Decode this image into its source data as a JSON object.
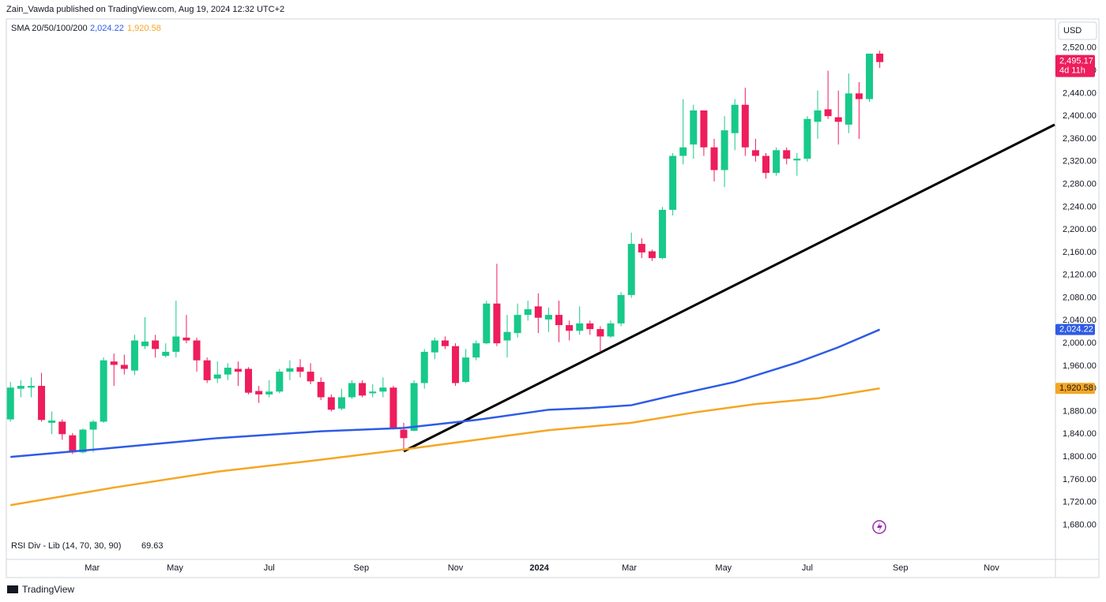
{
  "header": {
    "text": "Zain_Vawda published on TradingView.com, Aug 19, 2024 12:32 UTC+2"
  },
  "footer": {
    "brand": "TradingView"
  },
  "chart_data": {
    "type": "candlestick",
    "currency": "USD",
    "up_color": "#17c98a",
    "down_color": "#ee1d5c",
    "grid": false,
    "ylim": [
      1632,
      2535
    ],
    "yticks": [
      {
        "value": 1680,
        "label": "1,680.00"
      },
      {
        "value": 1720,
        "label": "1,720.00"
      },
      {
        "value": 1760,
        "label": "1,760.00"
      },
      {
        "value": 1800,
        "label": "1,800.00"
      },
      {
        "value": 1840,
        "label": "1,840.00"
      },
      {
        "value": 1880,
        "label": "1,880.00"
      },
      {
        "value": 1920,
        "label": "1,920.00"
      },
      {
        "value": 1960,
        "label": "1,960.00"
      },
      {
        "value": 2000,
        "label": "2,000.00"
      },
      {
        "value": 2040,
        "label": "2,040.00"
      },
      {
        "value": 2080,
        "label": "2,080.00"
      },
      {
        "value": 2120,
        "label": "2,120.00"
      },
      {
        "value": 2160,
        "label": "2,160.00"
      },
      {
        "value": 2200,
        "label": "2,200.00"
      },
      {
        "value": 2240,
        "label": "2,240.00"
      },
      {
        "value": 2280,
        "label": "2,280.00"
      },
      {
        "value": 2320,
        "label": "2,320.00"
      },
      {
        "value": 2360,
        "label": "2,360.00"
      },
      {
        "value": 2400,
        "label": "2,400.00"
      },
      {
        "value": 2440,
        "label": "2,440.00"
      },
      {
        "value": 2480,
        "label": "2,480.00"
      },
      {
        "value": 2520,
        "label": "2,520.00"
      }
    ],
    "xlim": [
      -0.4,
      100.9
    ],
    "xticks": [
      {
        "value": 7.9,
        "label": "Mar"
      },
      {
        "value": 15.9,
        "label": "May"
      },
      {
        "value": 25,
        "label": "Jul"
      },
      {
        "value": 33.9,
        "label": "Sep"
      },
      {
        "value": 43,
        "label": "Nov"
      },
      {
        "value": 51.1,
        "label": "2024"
      },
      {
        "value": 59.8,
        "label": "Mar"
      },
      {
        "value": 68.9,
        "label": "May"
      },
      {
        "value": 77,
        "label": "Jul"
      },
      {
        "value": 86,
        "label": "Sep"
      },
      {
        "value": 94.8,
        "label": "Nov"
      }
    ],
    "ohlc": [
      [
        1866,
        1932,
        1862,
        1922
      ],
      [
        1920,
        1935,
        1905,
        1925
      ],
      [
        1922,
        1940,
        1905,
        1925
      ],
      [
        1925,
        1948,
        1862,
        1865
      ],
      [
        1860,
        1880,
        1840,
        1864
      ],
      [
        1862,
        1866,
        1830,
        1840
      ],
      [
        1838,
        1842,
        1805,
        1808
      ],
      [
        1808,
        1850,
        1806,
        1848
      ],
      [
        1848,
        1865,
        1808,
        1862
      ],
      [
        1862,
        1975,
        1860,
        1970
      ],
      [
        1968,
        1982,
        1925,
        1962
      ],
      [
        1962,
        1980,
        1945,
        1955
      ],
      [
        1952,
        2015,
        1944,
        2005
      ],
      [
        1995,
        2046,
        1990,
        2003
      ],
      [
        2005,
        2015,
        1975,
        1990
      ],
      [
        1978,
        2000,
        1975,
        1985
      ],
      [
        1985,
        2075,
        1975,
        2012
      ],
      [
        2010,
        2050,
        2000,
        2005
      ],
      [
        2005,
        2010,
        1950,
        1970
      ],
      [
        1970,
        1975,
        1930,
        1935
      ],
      [
        1938,
        1968,
        1930,
        1945
      ],
      [
        1945,
        1965,
        1935,
        1957
      ],
      [
        1955,
        1968,
        1925,
        1950
      ],
      [
        1955,
        1958,
        1910,
        1913
      ],
      [
        1916,
        1925,
        1895,
        1910
      ],
      [
        1910,
        1935,
        1905,
        1915
      ],
      [
        1915,
        1955,
        1912,
        1950
      ],
      [
        1950,
        1970,
        1935,
        1956
      ],
      [
        1958,
        1972,
        1940,
        1950
      ],
      [
        1950,
        1965,
        1928,
        1933
      ],
      [
        1932,
        1940,
        1900,
        1905
      ],
      [
        1905,
        1910,
        1880,
        1883
      ],
      [
        1885,
        1920,
        1882,
        1905
      ],
      [
        1905,
        1935,
        1902,
        1930
      ],
      [
        1930,
        1935,
        1905,
        1908
      ],
      [
        1912,
        1928,
        1905,
        1915
      ],
      [
        1915,
        1940,
        1905,
        1922
      ],
      [
        1922,
        1925,
        1848,
        1850
      ],
      [
        1848,
        1860,
        1810,
        1833
      ],
      [
        1846,
        1935,
        1845,
        1930
      ],
      [
        1930,
        1990,
        1920,
        1985
      ],
      [
        1984,
        2010,
        1972,
        2005
      ],
      [
        2005,
        2012,
        1990,
        1995
      ],
      [
        1995,
        2000,
        1925,
        1930
      ],
      [
        1932,
        1990,
        1930,
        1975
      ],
      [
        1975,
        2005,
        1970,
        2000
      ],
      [
        2000,
        2075,
        1998,
        2070
      ],
      [
        2070,
        2140,
        1995,
        2000
      ],
      [
        2005,
        2050,
        1975,
        2020
      ],
      [
        2018,
        2070,
        2010,
        2050
      ],
      [
        2050,
        2075,
        2040,
        2060
      ],
      [
        2065,
        2088,
        2018,
        2045
      ],
      [
        2042,
        2063,
        2020,
        2050
      ],
      [
        2050,
        2075,
        2002,
        2032
      ],
      [
        2032,
        2040,
        2005,
        2022
      ],
      [
        2022,
        2065,
        2015,
        2035
      ],
      [
        2035,
        2040,
        2015,
        2025
      ],
      [
        2025,
        2030,
        1985,
        2012
      ],
      [
        2012,
        2040,
        2010,
        2035
      ],
      [
        2035,
        2090,
        2030,
        2085
      ],
      [
        2085,
        2195,
        2080,
        2175
      ],
      [
        2175,
        2185,
        2150,
        2160
      ],
      [
        2162,
        2165,
        2145,
        2150
      ],
      [
        2150,
        2240,
        2148,
        2235
      ],
      [
        2235,
        2335,
        2225,
        2330
      ],
      [
        2330,
        2430,
        2315,
        2345
      ],
      [
        2350,
        2420,
        2325,
        2410
      ],
      [
        2410,
        2410,
        2330,
        2345
      ],
      [
        2345,
        2360,
        2285,
        2305
      ],
      [
        2305,
        2400,
        2275,
        2375
      ],
      [
        2370,
        2430,
        2340,
        2420
      ],
      [
        2420,
        2450,
        2330,
        2345
      ],
      [
        2340,
        2360,
        2320,
        2330
      ],
      [
        2330,
        2335,
        2290,
        2300
      ],
      [
        2300,
        2345,
        2295,
        2340
      ],
      [
        2340,
        2345,
        2315,
        2325
      ],
      [
        2322,
        2335,
        2295,
        2325
      ],
      [
        2325,
        2400,
        2320,
        2395
      ],
      [
        2390,
        2445,
        2360,
        2410
      ],
      [
        2412,
        2480,
        2395,
        2400
      ],
      [
        2398,
        2445,
        2350,
        2390
      ],
      [
        2385,
        2475,
        2370,
        2440
      ],
      [
        2440,
        2460,
        2360,
        2430
      ],
      [
        2430,
        2510,
        2425,
        2510
      ],
      [
        2510,
        2515,
        2485,
        2495.17
      ]
    ],
    "last_price_label": "2,495.17",
    "countdown": "4d 11h",
    "indicator": {
      "name": "SMA 20/50/100/200",
      "series": [
        {
          "color": "#2e5be6",
          "x": [
            0,
            10,
            20,
            30,
            38,
            45,
            52,
            56,
            60,
            64,
            70,
            76,
            80,
            84
          ],
          "values": [
            1800,
            1816,
            1833,
            1845,
            1851,
            1865,
            1883,
            1886,
            1891,
            1908,
            1932,
            1966,
            1993,
            2024.22
          ],
          "last_value_label": "2,024.22"
        },
        {
          "color": "#f5a623",
          "x": [
            0,
            10,
            20,
            30,
            38,
            45,
            52,
            60,
            66,
            72,
            78,
            84
          ],
          "values": [
            1715,
            1746,
            1774,
            1795,
            1813,
            1830,
            1847,
            1860,
            1878,
            1893,
            1903,
            1920.58
          ],
          "last_value_label": "1,920.58"
        }
      ]
    },
    "rsi": {
      "name": "RSI Div - Lib (14, 70, 30, 90)",
      "value": 69.63
    }
  }
}
